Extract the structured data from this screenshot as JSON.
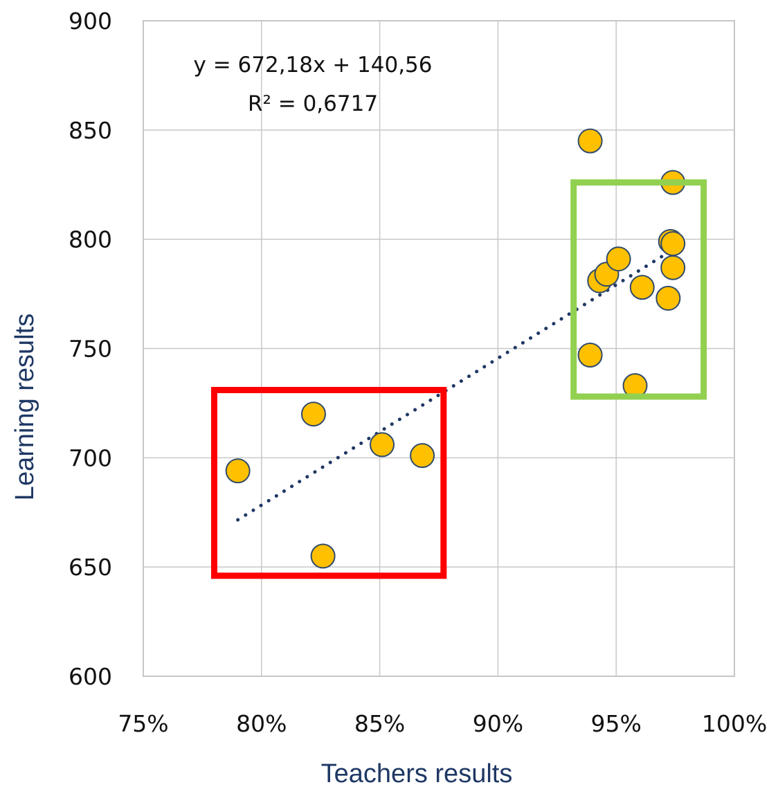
{
  "chart_data": {
    "type": "scatter",
    "xlabel": "Teachers results",
    "ylabel": "Learning results",
    "xlim": [
      0.75,
      1.0
    ],
    "ylim": [
      600,
      900
    ],
    "x_ticks": [
      0.75,
      0.8,
      0.85,
      0.9,
      0.95,
      1.0
    ],
    "x_tick_labels": [
      "75%",
      "80%",
      "85%",
      "90%",
      "95%",
      "100%"
    ],
    "y_ticks": [
      600,
      650,
      700,
      750,
      800,
      850,
      900
    ],
    "y_tick_labels": [
      "600",
      "650",
      "700",
      "750",
      "800",
      "850",
      "900"
    ],
    "grid": true,
    "points": [
      {
        "x": 0.79,
        "y": 694
      },
      {
        "x": 0.822,
        "y": 720
      },
      {
        "x": 0.826,
        "y": 655
      },
      {
        "x": 0.851,
        "y": 706
      },
      {
        "x": 0.868,
        "y": 701
      },
      {
        "x": 0.939,
        "y": 845
      },
      {
        "x": 0.939,
        "y": 747
      },
      {
        "x": 0.943,
        "y": 781
      },
      {
        "x": 0.946,
        "y": 784
      },
      {
        "x": 0.951,
        "y": 791
      },
      {
        "x": 0.958,
        "y": 733
      },
      {
        "x": 0.961,
        "y": 778
      },
      {
        "x": 0.972,
        "y": 773
      },
      {
        "x": 0.973,
        "y": 799
      },
      {
        "x": 0.974,
        "y": 798
      },
      {
        "x": 0.974,
        "y": 787
      },
      {
        "x": 0.974,
        "y": 826
      }
    ],
    "trendline": {
      "slope": 672.18,
      "intercept": 140.56,
      "x_range": [
        0.79,
        0.974
      ],
      "equation_label": "y = 672,18x + 140,56",
      "r2_label": "R² = 0,6717",
      "color": "#1f3864"
    },
    "highlight_boxes": [
      {
        "x_range": [
          0.78,
          0.877
        ],
        "y_range": [
          646,
          731
        ],
        "color": "#ff0000"
      },
      {
        "x_range": [
          0.932,
          0.987
        ],
        "y_range": [
          728,
          826
        ],
        "color": "#92d050"
      }
    ],
    "marker_color": "#ffc000",
    "marker_edge_color": "#2f4a6b"
  }
}
